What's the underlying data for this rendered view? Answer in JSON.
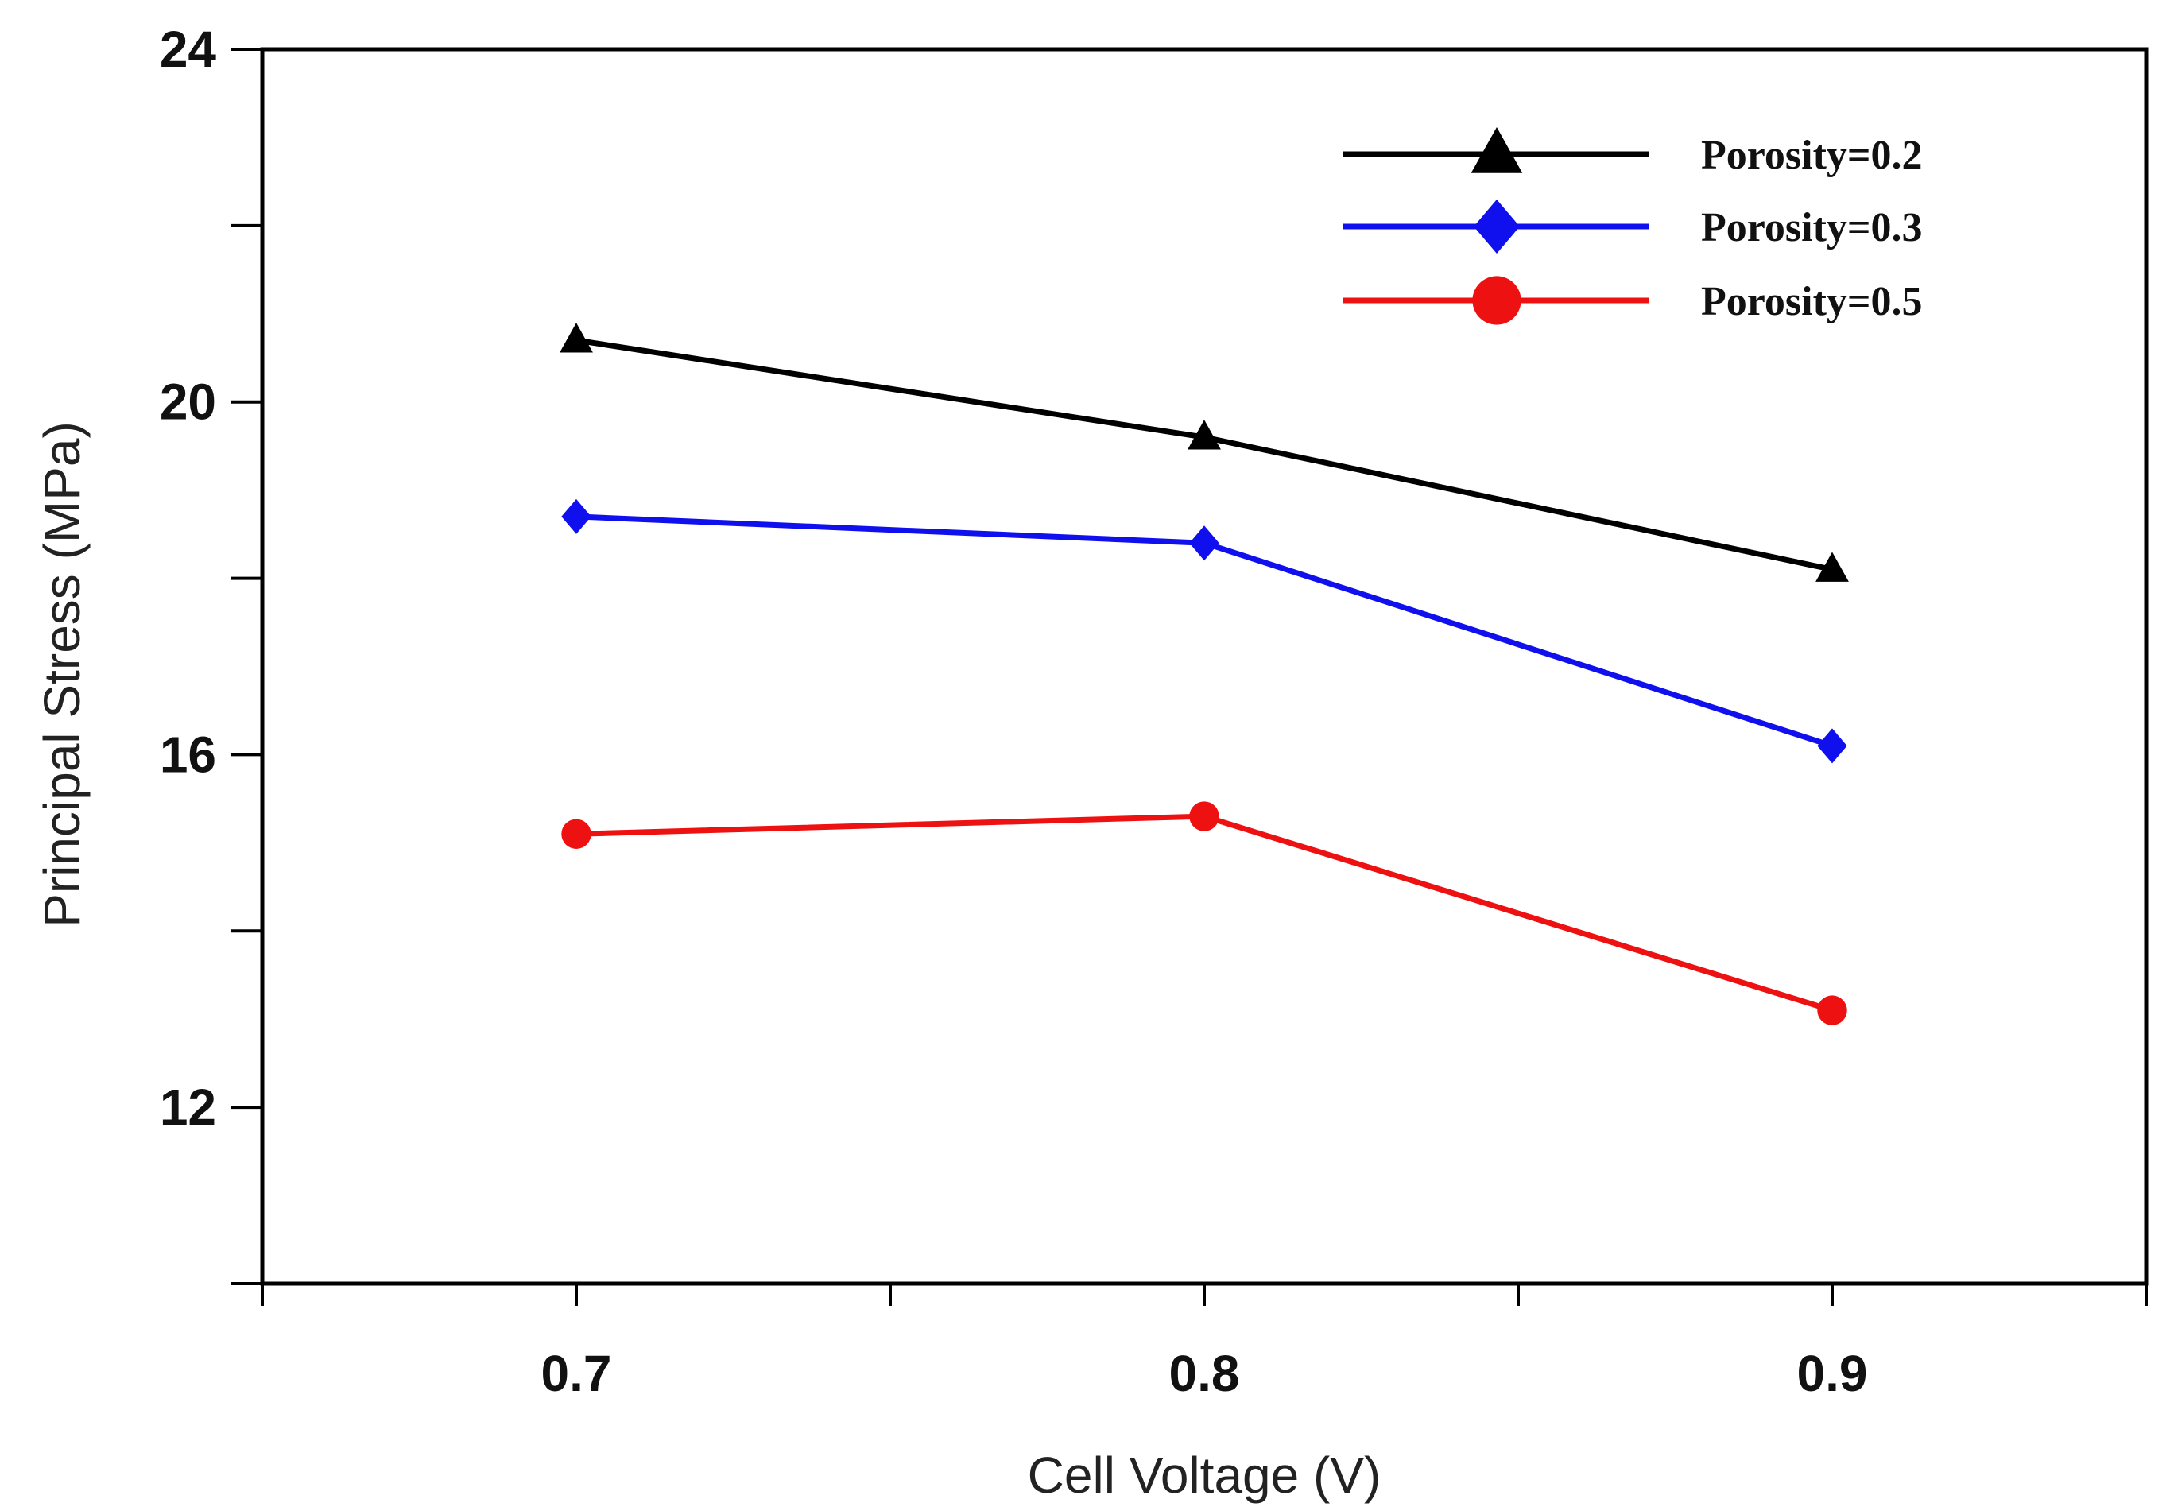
{
  "chart_data": {
    "type": "line",
    "title": "",
    "xlabel": "Cell Voltage (V)",
    "ylabel": "Principal Stress (MPa)",
    "x": [
      0.7,
      0.8,
      0.9
    ],
    "xlim": [
      0.65,
      0.95
    ],
    "ylim": [
      10,
      24
    ],
    "xticks_major": [
      0.7,
      0.8,
      0.9
    ],
    "xticks_major_labels": [
      "0.7",
      "0.8",
      "0.9"
    ],
    "xticks_minor": [
      0.65,
      0.75,
      0.85,
      0.95
    ],
    "yticks_major": [
      12,
      16,
      20,
      24
    ],
    "yticks_major_labels": [
      "12",
      "16",
      "20",
      "24"
    ],
    "yticks_minor": [
      10,
      14,
      18,
      22
    ],
    "grid": false,
    "legend_position": "top-right",
    "series": [
      {
        "name": "Porosity=0.2",
        "values": [
          20.7,
          19.6,
          18.1
        ],
        "color": "#000000",
        "marker": "triangle"
      },
      {
        "name": "Porosity=0.3",
        "values": [
          18.7,
          18.4,
          16.1
        ],
        "color": "#1010ee",
        "marker": "diamond"
      },
      {
        "name": "Porosity=0.5",
        "values": [
          15.1,
          15.3,
          13.1
        ],
        "color": "#ee1111",
        "marker": "circle"
      }
    ]
  }
}
